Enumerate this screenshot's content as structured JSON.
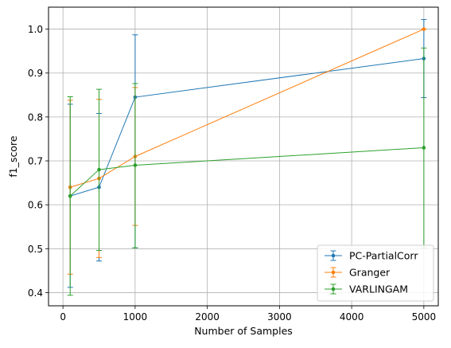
{
  "chart_data": {
    "type": "line",
    "title": "",
    "xlabel": "Number of Samples",
    "ylabel": "f1_score",
    "xlim": [
      -200,
      5200
    ],
    "ylim": [
      0.37,
      1.05
    ],
    "xticks": [
      0,
      1000,
      2000,
      3000,
      4000,
      5000
    ],
    "yticks": [
      0.4,
      0.5,
      0.6,
      0.7,
      0.8,
      0.9,
      1.0
    ],
    "xtick_labels": [
      "0",
      "1000",
      "2000",
      "3000",
      "4000",
      "5000"
    ],
    "ytick_labels": [
      "0.4",
      "0.5",
      "0.6",
      "0.7",
      "0.8",
      "0.9",
      "1.0"
    ],
    "grid": true,
    "legend_position": "bottom-right",
    "x": [
      100,
      500,
      1000,
      5000
    ],
    "series": [
      {
        "name": "PC-PartialCorr",
        "color": "#1f77b4",
        "values": [
          0.62,
          0.64,
          0.845,
          0.933
        ],
        "err_low": [
          0.412,
          0.472,
          0.502,
          0.844
        ],
        "err_high": [
          0.829,
          0.808,
          0.987,
          1.022
        ]
      },
      {
        "name": "Granger",
        "color": "#ff7f0e",
        "values": [
          0.64,
          0.66,
          0.71,
          1.0
        ],
        "err_low": [
          0.442,
          0.48,
          0.553,
          1.0
        ],
        "err_high": [
          0.838,
          0.84,
          0.867,
          1.0
        ]
      },
      {
        "name": "VARLINGAM",
        "color": "#2ca02c",
        "values": [
          0.62,
          0.68,
          0.69,
          0.73
        ],
        "err_low": [
          0.394,
          0.496,
          0.502,
          0.502
        ],
        "err_high": [
          0.846,
          0.863,
          0.876,
          0.957
        ]
      }
    ]
  }
}
